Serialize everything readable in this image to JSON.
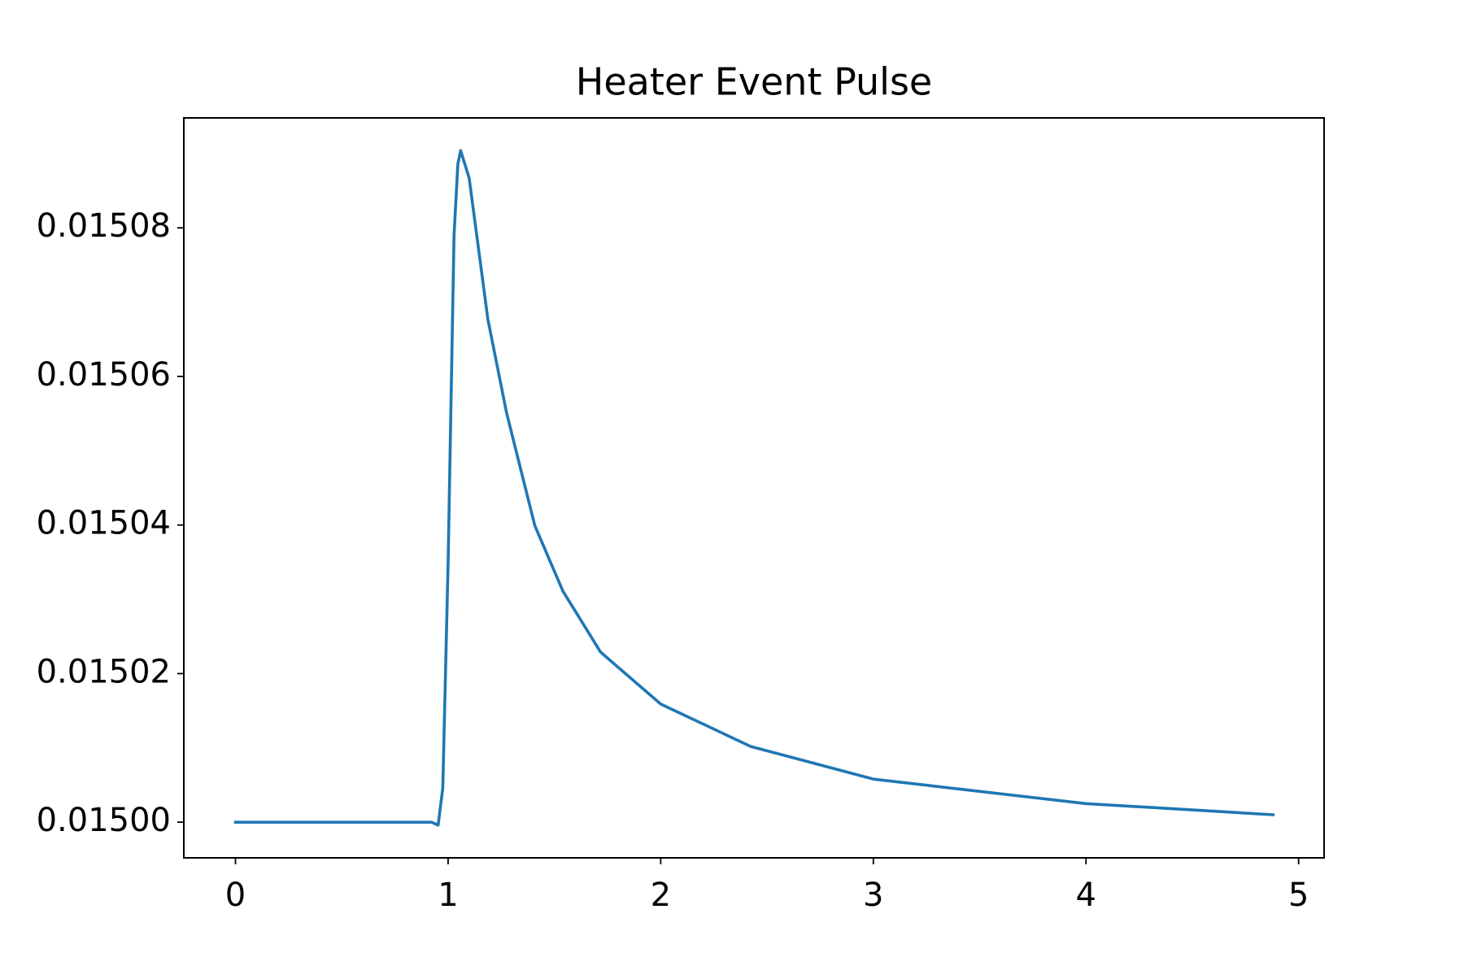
{
  "chart_data": {
    "type": "line",
    "title": "Heater Event Pulse",
    "x": [
      0,
      0.922,
      0.953,
      0.975,
      1.0,
      1.028,
      1.046,
      1.059,
      1.099,
      1.187,
      1.275,
      1.408,
      1.54,
      1.717,
      2.0,
      2.423,
      3.0,
      4.0,
      4.88
    ],
    "series": [
      {
        "color": "#1f77b4",
        "values": [
          0.015,
          0.015,
          0.0149996,
          0.0150046,
          0.0150349,
          0.0150791,
          0.0150886,
          0.0150904,
          0.0150867,
          0.0150677,
          0.0150551,
          0.0150399,
          0.0150311,
          0.0150229,
          0.0150159,
          0.0150102,
          0.0150058,
          0.0150025,
          0.015001
        ]
      }
    ],
    "xlim": [
      -0.243,
      5.12
    ],
    "xticks": [
      0,
      1,
      2,
      3,
      4,
      5
    ],
    "ylim": [
      0.0149952,
      0.0150948
    ],
    "yticks": [
      {
        "value": 0.015,
        "label": "0.01500"
      },
      0.01502,
      0.01504,
      0.01506,
      0.01508
    ],
    "grid": false
  }
}
